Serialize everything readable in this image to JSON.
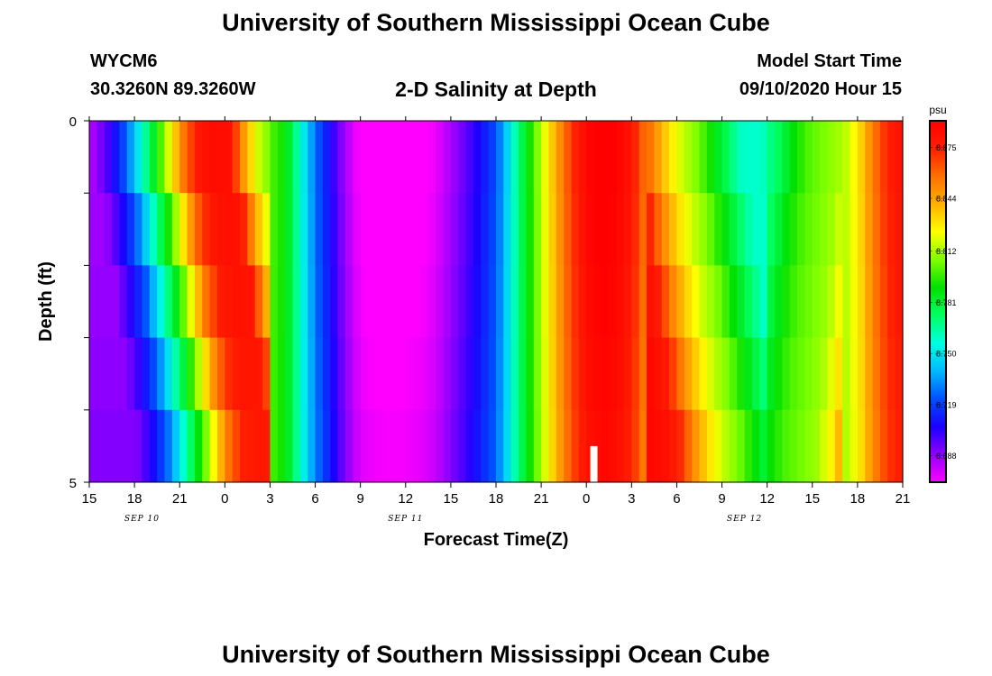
{
  "header": {
    "title": "University of Southern Mississippi Ocean Cube",
    "station": "WYCM6",
    "coords": "30.3260N 89.3260W",
    "subtitle": "2-D Salinity at Depth",
    "model_label": "Model Start Time",
    "model_time": "09/10/2020 Hour 15"
  },
  "footer": {
    "title": "University of Southern Mississippi Ocean Cube"
  },
  "chart_data": {
    "type": "heatmap",
    "title": "2-D Salinity at Depth",
    "xlabel": "Forecast Time(Z)",
    "ylabel": "Depth (ft)",
    "x_hours_from_start": [
      0,
      54
    ],
    "ylim": [
      5,
      0
    ],
    "x_tick_labels": [
      "15",
      "18",
      "21",
      "0",
      "3",
      "6",
      "9",
      "12",
      "15",
      "18",
      "21",
      "0",
      "3",
      "6",
      "9",
      "12",
      "15",
      "18",
      "21"
    ],
    "y_tick_labels": [
      "0",
      "5"
    ],
    "date_labels": [
      {
        "text": "SEP 10",
        "hour": 3.5
      },
      {
        "text": "SEP 11",
        "hour": 21.0
      },
      {
        "text": "SEP 12",
        "hour": 43.5
      }
    ],
    "now_marker_hour": 33.5,
    "colorbar": {
      "unit": "psu",
      "min": 8.672,
      "max": 8.891,
      "ticks": [
        "8.875",
        "8.844",
        "8.812",
        "8.781",
        "8.750",
        "8.719",
        "8.688"
      ],
      "tick_values": [
        8.875,
        8.844,
        8.812,
        8.781,
        8.75,
        8.719,
        8.688
      ],
      "colors": [
        "#ff00ff",
        "#9000ff",
        "#1a00ff",
        "#0050ff",
        "#00b8ff",
        "#00ffe0",
        "#00ff60",
        "#00e000",
        "#80ff00",
        "#ffff00",
        "#ffb000",
        "#ff7000",
        "#ff2000",
        "#ff0000"
      ]
    },
    "depth_levels": [
      0,
      1,
      2,
      3,
      4,
      5
    ],
    "profile_x": [
      0,
      1,
      2,
      3,
      4,
      5,
      6,
      7,
      8,
      9,
      10,
      11,
      12,
      13,
      14,
      15,
      16,
      17,
      18,
      19,
      20,
      21,
      22,
      23,
      24,
      25,
      26,
      27,
      28,
      29,
      30,
      31,
      32,
      33,
      34,
      35,
      36,
      37,
      38,
      39,
      40,
      41,
      42,
      43,
      44,
      45,
      46,
      47,
      48,
      49,
      50,
      51,
      52,
      53,
      54
    ],
    "profile_values": [
      8.69,
      8.705,
      8.725,
      8.755,
      8.785,
      8.82,
      8.855,
      8.875,
      8.88,
      8.878,
      8.84,
      8.812,
      8.8,
      8.79,
      8.76,
      8.73,
      8.71,
      8.69,
      8.676,
      8.673,
      8.672,
      8.673,
      8.675,
      8.68,
      8.69,
      8.7,
      8.712,
      8.725,
      8.755,
      8.785,
      8.812,
      8.84,
      8.865,
      8.882,
      8.889,
      8.885,
      8.875,
      8.85,
      8.83,
      8.815,
      8.805,
      8.79,
      8.775,
      8.76,
      8.76,
      8.765,
      8.775,
      8.79,
      8.8,
      8.805,
      8.81,
      8.825,
      8.85,
      8.87,
      8.878
    ],
    "depth_variation": "top rows slightly more extreme; lag of about 1 h per ft at hours 0-12 and 38-45"
  }
}
